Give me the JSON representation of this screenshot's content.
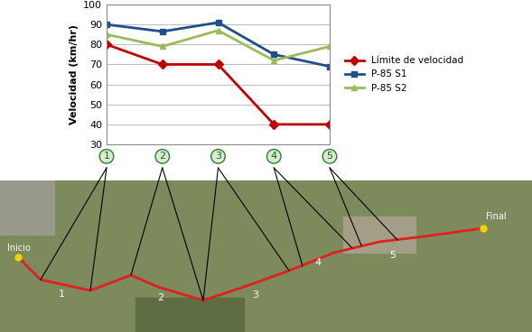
{
  "chart_data": {
    "type": "line",
    "y_label": "Velocidad (km/hr)",
    "categories": [
      "1",
      "2",
      "3",
      "4",
      "5"
    ],
    "series": [
      {
        "name": "Límite de velocidad",
        "color": "#c00000",
        "marker": "D",
        "values": [
          80,
          70,
          70,
          40,
          40
        ]
      },
      {
        "name": "P-85 S1",
        "color": "#1f4e8c",
        "marker": "s",
        "values": [
          90,
          86.5,
          91,
          75,
          69
        ]
      },
      {
        "name": "P-85 S2",
        "color": "#9bbb59",
        "marker": "^",
        "values": [
          85,
          79,
          87,
          72,
          79
        ]
      }
    ],
    "ylim": [
      30,
      100
    ],
    "yticks": [
      30,
      40,
      50,
      60,
      70,
      80,
      90,
      100
    ],
    "grid": true,
    "legend": "right"
  },
  "map": {
    "start": "Inicio",
    "end": "Final",
    "segments": [
      "1",
      "2",
      "3",
      "4",
      "5"
    ]
  }
}
